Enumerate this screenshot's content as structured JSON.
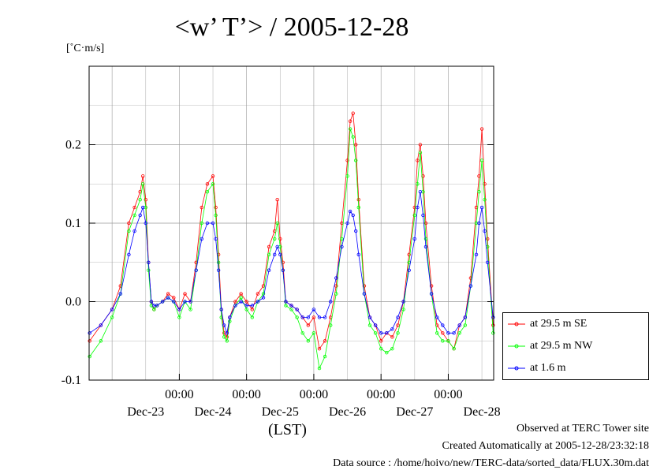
{
  "chart_data": {
    "type": "line",
    "title": "<w’ T’> / 2005-12-28",
    "ylabel": "[˚C·m/s]",
    "xlabel": "(LST)",
    "ylim": [
      -0.1,
      0.3
    ],
    "yticks": [
      -0.1,
      0.0,
      0.1,
      0.2
    ],
    "ytick_labels": [
      "-0.1",
      "0.0",
      "0.1",
      "0.2"
    ],
    "x_unit": "hours since Dec-23 00:00 LST",
    "xlim": [
      -8.2,
      136.2
    ],
    "xticks_hours": [
      24,
      48,
      72,
      96,
      120
    ],
    "xtick_time_labels": [
      "00:00",
      "00:00",
      "00:00",
      "00:00",
      "00:00"
    ],
    "day_labels": [
      "Dec-23",
      "Dec-24",
      "Dec-25",
      "Dec-26",
      "Dec-27",
      "Dec-28"
    ],
    "day_label_hours": [
      12,
      36,
      60,
      84,
      108,
      132
    ],
    "grid": true,
    "legend_position": "right-bottom-outside",
    "series": [
      {
        "name": "at 29.5 m SE",
        "color": "#ff0000",
        "x": [
          -8,
          -4,
          0,
          3,
          6,
          8,
          10,
          11,
          12,
          13,
          14,
          15,
          16,
          18,
          20,
          22,
          24,
          26,
          28,
          30,
          32,
          34,
          36,
          37,
          38,
          39,
          40,
          41,
          42,
          44,
          46,
          48,
          50,
          52,
          54,
          56,
          58,
          59,
          60,
          61,
          62,
          64,
          66,
          68,
          70,
          72,
          74,
          76,
          78,
          80,
          82,
          84,
          85,
          86,
          87,
          88,
          90,
          92,
          94,
          96,
          98,
          100,
          102,
          104,
          106,
          108,
          109,
          110,
          111,
          112,
          114,
          116,
          118,
          120,
          122,
          124,
          126,
          128,
          130,
          131,
          132,
          133,
          134,
          136
        ],
        "values": [
          -0.05,
          -0.03,
          -0.01,
          0.02,
          0.1,
          0.12,
          0.14,
          0.16,
          0.13,
          0.05,
          0.0,
          -0.01,
          -0.005,
          0.0,
          0.01,
          0.005,
          -0.01,
          0.01,
          0.0,
          0.05,
          0.12,
          0.15,
          0.16,
          0.12,
          0.06,
          -0.01,
          -0.04,
          -0.045,
          -0.02,
          0.0,
          0.01,
          0.0,
          -0.01,
          0.01,
          0.02,
          0.07,
          0.09,
          0.13,
          0.08,
          0.05,
          0.0,
          -0.005,
          -0.01,
          -0.02,
          -0.03,
          -0.02,
          -0.06,
          -0.05,
          -0.02,
          0.02,
          0.1,
          0.18,
          0.23,
          0.24,
          0.2,
          0.13,
          0.02,
          -0.02,
          -0.03,
          -0.05,
          -0.04,
          -0.045,
          -0.03,
          0.0,
          0.06,
          0.12,
          0.18,
          0.2,
          0.16,
          0.1,
          0.02,
          -0.03,
          -0.04,
          -0.05,
          -0.06,
          -0.03,
          -0.02,
          0.03,
          0.12,
          0.16,
          0.22,
          0.15,
          0.08,
          -0.03
        ]
      },
      {
        "name": "at 29.5 m NW",
        "color": "#00ff00",
        "x": [
          -8,
          -4,
          0,
          3,
          6,
          8,
          10,
          11,
          12,
          13,
          14,
          15,
          16,
          18,
          20,
          22,
          24,
          26,
          28,
          30,
          32,
          34,
          36,
          37,
          38,
          39,
          40,
          41,
          42,
          44,
          46,
          48,
          50,
          52,
          54,
          56,
          58,
          59,
          60,
          61,
          62,
          64,
          66,
          68,
          70,
          72,
          74,
          76,
          78,
          80,
          82,
          84,
          85,
          86,
          87,
          88,
          90,
          92,
          94,
          96,
          98,
          100,
          102,
          104,
          106,
          108,
          109,
          110,
          111,
          112,
          114,
          116,
          118,
          120,
          122,
          124,
          126,
          128,
          130,
          131,
          132,
          133,
          134,
          136
        ],
        "values": [
          -0.07,
          -0.05,
          -0.02,
          0.01,
          0.09,
          0.11,
          0.13,
          0.15,
          0.12,
          0.04,
          -0.005,
          -0.01,
          -0.005,
          0.0,
          0.005,
          0.0,
          -0.02,
          0.0,
          -0.01,
          0.04,
          0.1,
          0.14,
          0.15,
          0.11,
          0.05,
          -0.02,
          -0.045,
          -0.05,
          -0.025,
          -0.005,
          0.005,
          -0.01,
          -0.02,
          0.0,
          0.01,
          0.06,
          0.08,
          0.1,
          0.07,
          0.04,
          -0.005,
          -0.01,
          -0.02,
          -0.04,
          -0.05,
          -0.04,
          -0.085,
          -0.07,
          -0.03,
          0.01,
          0.08,
          0.16,
          0.22,
          0.21,
          0.18,
          0.12,
          0.01,
          -0.03,
          -0.04,
          -0.06,
          -0.065,
          -0.06,
          -0.04,
          -0.01,
          0.05,
          0.11,
          0.15,
          0.19,
          0.14,
          0.08,
          0.01,
          -0.04,
          -0.05,
          -0.05,
          -0.06,
          -0.04,
          -0.03,
          0.02,
          0.1,
          0.14,
          0.18,
          0.13,
          0.07,
          -0.04
        ]
      },
      {
        "name": "at 1.6 m",
        "color": "#0000ff",
        "x": [
          -8,
          -4,
          0,
          3,
          6,
          8,
          10,
          11,
          12,
          13,
          14,
          15,
          16,
          18,
          20,
          22,
          24,
          26,
          28,
          30,
          32,
          34,
          36,
          37,
          38,
          39,
          40,
          41,
          42,
          44,
          46,
          48,
          50,
          52,
          54,
          56,
          58,
          59,
          60,
          61,
          62,
          64,
          66,
          68,
          70,
          72,
          74,
          76,
          78,
          80,
          82,
          84,
          85,
          86,
          87,
          88,
          90,
          92,
          94,
          96,
          98,
          100,
          102,
          104,
          106,
          108,
          109,
          110,
          111,
          112,
          114,
          116,
          118,
          120,
          122,
          124,
          126,
          128,
          130,
          131,
          132,
          133,
          134,
          136
        ],
        "values": [
          -0.04,
          -0.03,
          -0.01,
          0.01,
          0.06,
          0.09,
          0.11,
          0.12,
          0.1,
          0.05,
          0.0,
          -0.005,
          -0.005,
          0.0,
          0.005,
          0.0,
          -0.01,
          0.0,
          0.0,
          0.04,
          0.08,
          0.1,
          0.1,
          0.08,
          0.04,
          -0.01,
          -0.03,
          -0.04,
          -0.02,
          -0.005,
          0.0,
          -0.005,
          -0.005,
          0.0,
          0.005,
          0.04,
          0.06,
          0.07,
          0.06,
          0.04,
          0.0,
          -0.005,
          -0.01,
          -0.02,
          -0.02,
          -0.01,
          -0.02,
          -0.02,
          0.0,
          0.03,
          0.07,
          0.1,
          0.115,
          0.11,
          0.09,
          0.06,
          0.01,
          -0.02,
          -0.03,
          -0.04,
          -0.04,
          -0.035,
          -0.02,
          0.0,
          0.04,
          0.08,
          0.12,
          0.14,
          0.11,
          0.07,
          0.01,
          -0.02,
          -0.03,
          -0.04,
          -0.04,
          -0.03,
          -0.02,
          0.02,
          0.06,
          0.1,
          0.12,
          0.09,
          0.05,
          -0.02
        ]
      }
    ]
  },
  "footer": {
    "line1": "Observed at TERC Tower site",
    "line2": "Created Automatically at 2005-12-28/23:32:18",
    "line3": "Data source : /home/hoivo/new/TERC-data/sorted_data/FLUX.30m.dat"
  }
}
